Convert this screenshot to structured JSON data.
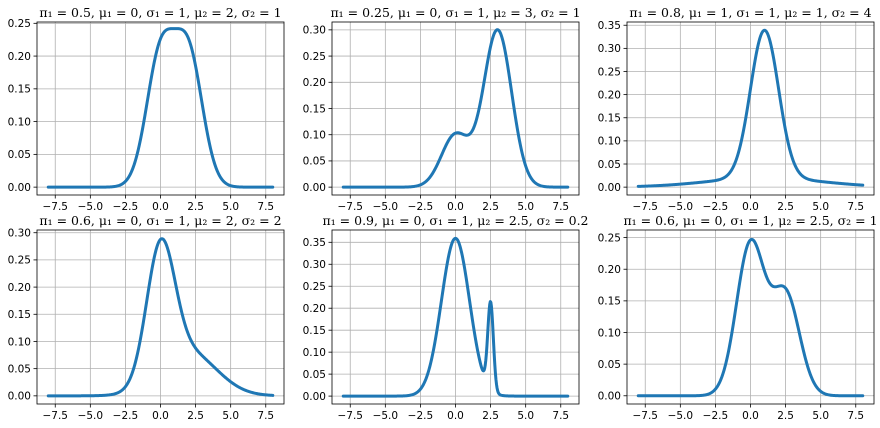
{
  "chart_data": [
    {
      "type": "line",
      "title": "π₁ = 0.5, μ₁ = 0, σ₁ = 1, μ₂ = 2, σ₂ = 1",
      "pi1": 0.5,
      "mu1": 0,
      "sigma1": 1,
      "mu2": 2,
      "sigma2": 1,
      "xlim": [
        -8.8,
        8.8
      ],
      "ylim": [
        -0.012,
        0.252
      ],
      "xticks": [
        -7.5,
        -5.0,
        -2.5,
        0.0,
        2.5,
        5.0,
        7.5
      ],
      "xtick_labels": [
        "−7.5",
        "−5.0",
        "−2.5",
        "0.0",
        "2.5",
        "5.0",
        "7.5"
      ],
      "yticks": [
        0.0,
        0.05,
        0.1,
        0.15,
        0.2,
        0.25
      ],
      "ytick_labels": [
        "0.00",
        "0.05",
        "0.10",
        "0.15",
        "0.20",
        "0.25"
      ],
      "x_range": [
        -8,
        8
      ],
      "grid": true
    },
    {
      "type": "line",
      "title": "π₁ = 0.25, μ₁ = 0, σ₁ = 1, μ₂ = 3, σ₂ = 1",
      "pi1": 0.25,
      "mu1": 0,
      "sigma1": 1,
      "mu2": 3,
      "sigma2": 1,
      "xlim": [
        -8.8,
        8.8
      ],
      "ylim": [
        -0.015,
        0.315
      ],
      "xticks": [
        -7.5,
        -5.0,
        -2.5,
        0.0,
        2.5,
        5.0,
        7.5
      ],
      "xtick_labels": [
        "−7.5",
        "−5.0",
        "−2.5",
        "0.0",
        "2.5",
        "5.0",
        "7.5"
      ],
      "yticks": [
        0.0,
        0.05,
        0.1,
        0.15,
        0.2,
        0.25,
        0.3
      ],
      "ytick_labels": [
        "0.00",
        "0.05",
        "0.10",
        "0.15",
        "0.20",
        "0.25",
        "0.30"
      ],
      "x_range": [
        -8,
        8
      ],
      "grid": true
    },
    {
      "type": "line",
      "title": "π₁ = 0.8, μ₁ = 1, σ₁ = 1, μ₂ = 1, σ₂ = 4",
      "pi1": 0.8,
      "mu1": 1,
      "sigma1": 1,
      "mu2": 1,
      "sigma2": 4,
      "xlim": [
        -8.8,
        8.8
      ],
      "ylim": [
        -0.017,
        0.357
      ],
      "xticks": [
        -7.5,
        -5.0,
        -2.5,
        0.0,
        2.5,
        5.0,
        7.5
      ],
      "xtick_labels": [
        "−7.5",
        "−5.0",
        "−2.5",
        "0.0",
        "2.5",
        "5.0",
        "7.5"
      ],
      "yticks": [
        0.0,
        0.05,
        0.1,
        0.15,
        0.2,
        0.25,
        0.3,
        0.35
      ],
      "ytick_labels": [
        "0.00",
        "0.05",
        "0.10",
        "0.15",
        "0.20",
        "0.25",
        "0.30",
        "0.35"
      ],
      "x_range": [
        -8,
        8
      ],
      "grid": true
    },
    {
      "type": "line",
      "title": "π₁ = 0.6, μ₁ = 0, σ₁ = 1, μ₂ = 2, σ₂ = 2",
      "pi1": 0.6,
      "mu1": 0,
      "sigma1": 1,
      "mu2": 2,
      "sigma2": 2,
      "xlim": [
        -8.8,
        8.8
      ],
      "ylim": [
        -0.015,
        0.305
      ],
      "xticks": [
        -7.5,
        -5.0,
        -2.5,
        0.0,
        2.5,
        5.0,
        7.5
      ],
      "xtick_labels": [
        "−7.5",
        "−5.0",
        "−2.5",
        "0.0",
        "2.5",
        "5.0",
        "7.5"
      ],
      "yticks": [
        0.0,
        0.05,
        0.1,
        0.15,
        0.2,
        0.25,
        0.3
      ],
      "ytick_labels": [
        "0.00",
        "0.05",
        "0.10",
        "0.15",
        "0.20",
        "0.25",
        "0.30"
      ],
      "x_range": [
        -8,
        8
      ],
      "grid": true
    },
    {
      "type": "line",
      "title": "π₁ = 0.9, μ₁ = 0, σ₁ = 1, μ₂ = 2.5, σ₂ = 0.2",
      "pi1": 0.9,
      "mu1": 0,
      "sigma1": 1,
      "mu2": 2.5,
      "sigma2": 0.2,
      "xlim": [
        -8.8,
        8.8
      ],
      "ylim": [
        -0.018,
        0.378
      ],
      "xticks": [
        -7.5,
        -5.0,
        -2.5,
        0.0,
        2.5,
        5.0,
        7.5
      ],
      "xtick_labels": [
        "−7.5",
        "−5.0",
        "−2.5",
        "0.0",
        "2.5",
        "5.0",
        "7.5"
      ],
      "yticks": [
        0.0,
        0.05,
        0.1,
        0.15,
        0.2,
        0.25,
        0.3,
        0.35
      ],
      "ytick_labels": [
        "0.00",
        "0.05",
        "0.10",
        "0.15",
        "0.20",
        "0.25",
        "0.30",
        "0.35"
      ],
      "x_range": [
        -8,
        8
      ],
      "grid": true
    },
    {
      "type": "line",
      "title": "π₁ = 0.6, μ₁ = 0, σ₁ = 1, μ₂ = 2.5, σ₂ = 1",
      "pi1": 0.6,
      "mu1": 0,
      "sigma1": 1,
      "mu2": 2.5,
      "sigma2": 1,
      "xlim": [
        -8.8,
        8.8
      ],
      "ylim": [
        -0.013,
        0.262
      ],
      "xticks": [
        -7.5,
        -5.0,
        -2.5,
        0.0,
        2.5,
        5.0,
        7.5
      ],
      "xtick_labels": [
        "−7.5",
        "−5.0",
        "−2.5",
        "0.0",
        "2.5",
        "5.0",
        "7.5"
      ],
      "yticks": [
        0.0,
        0.05,
        0.1,
        0.15,
        0.2,
        0.25
      ],
      "ytick_labels": [
        "0.00",
        "0.05",
        "0.10",
        "0.15",
        "0.20",
        "0.25"
      ],
      "x_range": [
        -8,
        8
      ],
      "grid": true
    }
  ],
  "colors": {
    "line": "#1f77b4",
    "grid": "#b0b0b0",
    "axis": "#000000"
  }
}
